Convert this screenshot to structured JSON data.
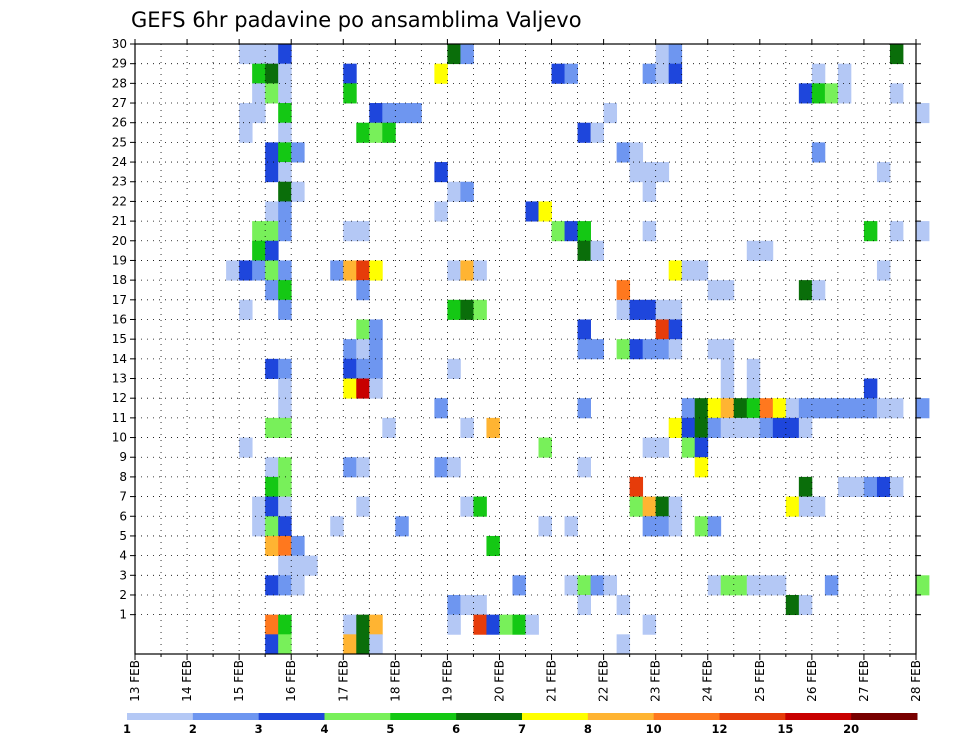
{
  "chart_data": {
    "type": "heatmap",
    "title": "GEFS 6hr padavine po ansamblima Valjevo",
    "xlabel": "",
    "ylabel": "",
    "x_ticks": [
      "13 FEB",
      "14 FEB",
      "15 FEB",
      "16 FEB",
      "17 FEB",
      "18 FEB",
      "19 FEB",
      "20 FEB",
      "21 FEB",
      "22 FEB",
      "23 FEB",
      "24 FEB",
      "25 FEB",
      "26 FEB",
      "27 FEB",
      "28 FEB"
    ],
    "y_ticks": [
      1,
      2,
      3,
      4,
      5,
      6,
      7,
      8,
      9,
      10,
      11,
      12,
      13,
      14,
      15,
      16,
      17,
      18,
      19,
      20,
      21,
      22,
      23,
      24,
      25,
      26,
      27,
      28,
      29,
      30
    ],
    "ylim": [
      0,
      30
    ],
    "time_step_hours": 6,
    "grid": true,
    "colorbar": {
      "placement": "bottom",
      "labels": [
        "1",
        "2",
        "3",
        "4",
        "5",
        "6",
        "7",
        "8",
        "10",
        "12",
        "15",
        "20"
      ],
      "colors": [
        "#b4c8f5",
        "#6e96f0",
        "#1e46dc",
        "#78f05a",
        "#14c814",
        "#0a6e0a",
        "#ffff00",
        "#ffb432",
        "#ff781e",
        "#e63c0a",
        "#c80000",
        "#780000"
      ]
    },
    "cells": [
      [
        30,
        "15 FEB 00Z",
        0
      ],
      [
        30,
        "15 FEB 06Z",
        0
      ],
      [
        30,
        "15 FEB 12Z",
        0
      ],
      [
        30,
        "15 FEB 18Z",
        2
      ],
      [
        30,
        "19 FEB 00Z",
        5
      ],
      [
        30,
        "19 FEB 06Z",
        1
      ],
      [
        30,
        "23 FEB 00Z",
        0
      ],
      [
        30,
        "23 FEB 06Z",
        1
      ],
      [
        30,
        "27 FEB 12Z",
        5
      ],
      [
        29,
        "15 FEB 06Z",
        4
      ],
      [
        29,
        "15 FEB 12Z",
        5
      ],
      [
        29,
        "15 FEB 18Z",
        0
      ],
      [
        29,
        "17 FEB 00Z",
        2
      ],
      [
        29,
        "18 FEB 18Z",
        6
      ],
      [
        29,
        "21 FEB 00Z",
        2
      ],
      [
        29,
        "21 FEB 06Z",
        1
      ],
      [
        29,
        "22 FEB 18Z",
        1
      ],
      [
        29,
        "23 FEB 00Z",
        0
      ],
      [
        29,
        "23 FEB 06Z",
        2
      ],
      [
        29,
        "26 FEB 00Z",
        0
      ],
      [
        29,
        "26 FEB 12Z",
        0
      ],
      [
        28,
        "15 FEB 06Z",
        0
      ],
      [
        28,
        "15 FEB 12Z",
        3
      ],
      [
        28,
        "15 FEB 18Z",
        0
      ],
      [
        28,
        "17 FEB 00Z",
        4
      ],
      [
        28,
        "25 FEB 18Z",
        2
      ],
      [
        28,
        "26 FEB 00Z",
        4
      ],
      [
        28,
        "26 FEB 06Z",
        3
      ],
      [
        28,
        "26 FEB 12Z",
        0
      ],
      [
        28,
        "27 FEB 12Z",
        0
      ],
      [
        27,
        "15 FEB 00Z",
        0
      ],
      [
        27,
        "15 FEB 06Z",
        0
      ],
      [
        27,
        "15 FEB 18Z",
        4
      ],
      [
        27,
        "17 FEB 12Z",
        2
      ],
      [
        27,
        "17 FEB 18Z",
        1
      ],
      [
        27,
        "18 FEB 00Z",
        1
      ],
      [
        27,
        "18 FEB 06Z",
        1
      ],
      [
        27,
        "22 FEB 00Z",
        0
      ],
      [
        27,
        "28 FEB 00Z",
        0
      ],
      [
        26,
        "15 FEB 00Z",
        0
      ],
      [
        26,
        "15 FEB 18Z",
        0
      ],
      [
        26,
        "17 FEB 06Z",
        4
      ],
      [
        26,
        "17 FEB 12Z",
        3
      ],
      [
        26,
        "17 FEB 18Z",
        4
      ],
      [
        26,
        "21 FEB 12Z",
        2
      ],
      [
        26,
        "21 FEB 18Z",
        0
      ],
      [
        25,
        "15 FEB 12Z",
        2
      ],
      [
        25,
        "15 FEB 18Z",
        4
      ],
      [
        25,
        "16 FEB 00Z",
        1
      ],
      [
        25,
        "22 FEB 06Z",
        1
      ],
      [
        25,
        "22 FEB 12Z",
        0
      ],
      [
        25,
        "26 FEB 00Z",
        1
      ],
      [
        24,
        "15 FEB 12Z",
        2
      ],
      [
        24,
        "15 FEB 18Z",
        0
      ],
      [
        24,
        "18 FEB 18Z",
        2
      ],
      [
        24,
        "22 FEB 12Z",
        0
      ],
      [
        24,
        "22 FEB 18Z",
        0
      ],
      [
        24,
        "23 FEB 00Z",
        0
      ],
      [
        24,
        "27 FEB 06Z",
        0
      ],
      [
        23,
        "15 FEB 18Z",
        5
      ],
      [
        23,
        "16 FEB 00Z",
        0
      ],
      [
        23,
        "19 FEB 00Z",
        0
      ],
      [
        23,
        "19 FEB 06Z",
        1
      ],
      [
        23,
        "22 FEB 18Z",
        0
      ],
      [
        22,
        "15 FEB 12Z",
        0
      ],
      [
        22,
        "15 FEB 18Z",
        1
      ],
      [
        22,
        "18 FEB 18Z",
        0
      ],
      [
        22,
        "20 FEB 12Z",
        2
      ],
      [
        22,
        "20 FEB 18Z",
        6
      ],
      [
        21,
        "15 FEB 06Z",
        3
      ],
      [
        21,
        "15 FEB 12Z",
        3
      ],
      [
        21,
        "15 FEB 18Z",
        1
      ],
      [
        21,
        "17 FEB 00Z",
        0
      ],
      [
        21,
        "17 FEB 06Z",
        0
      ],
      [
        21,
        "21 FEB 00Z",
        3
      ],
      [
        21,
        "21 FEB 06Z",
        2
      ],
      [
        21,
        "21 FEB 12Z",
        4
      ],
      [
        21,
        "22 FEB 18Z",
        0
      ],
      [
        21,
        "27 FEB 00Z",
        4
      ],
      [
        21,
        "27 FEB 12Z",
        0
      ],
      [
        21,
        "28 FEB 00Z",
        0
      ],
      [
        20,
        "15 FEB 06Z",
        4
      ],
      [
        20,
        "15 FEB 12Z",
        2
      ],
      [
        20,
        "21 FEB 12Z",
        5
      ],
      [
        20,
        "21 FEB 18Z",
        0
      ],
      [
        20,
        "24 FEB 18Z",
        0
      ],
      [
        20,
        "25 FEB 00Z",
        0
      ],
      [
        19,
        "14 FEB 18Z",
        0
      ],
      [
        19,
        "15 FEB 00Z",
        2
      ],
      [
        19,
        "15 FEB 06Z",
        1
      ],
      [
        19,
        "15 FEB 12Z",
        3
      ],
      [
        19,
        "15 FEB 18Z",
        1
      ],
      [
        19,
        "16 FEB 18Z",
        1
      ],
      [
        19,
        "17 FEB 00Z",
        7
      ],
      [
        19,
        "17 FEB 06Z",
        9
      ],
      [
        19,
        "17 FEB 12Z",
        6
      ],
      [
        19,
        "19 FEB 00Z",
        0
      ],
      [
        19,
        "19 FEB 06Z",
        7
      ],
      [
        19,
        "19 FEB 12Z",
        0
      ],
      [
        19,
        "23 FEB 06Z",
        6
      ],
      [
        19,
        "23 FEB 12Z",
        0
      ],
      [
        19,
        "23 FEB 18Z",
        0
      ],
      [
        19,
        "27 FEB 06Z",
        0
      ],
      [
        18,
        "15 FEB 12Z",
        1
      ],
      [
        18,
        "15 FEB 18Z",
        4
      ],
      [
        18,
        "17 FEB 06Z",
        1
      ],
      [
        18,
        "22 FEB 06Z",
        8
      ],
      [
        18,
        "24 FEB 00Z",
        0
      ],
      [
        18,
        "24 FEB 06Z",
        0
      ],
      [
        18,
        "25 FEB 18Z",
        5
      ],
      [
        18,
        "26 FEB 00Z",
        0
      ],
      [
        17,
        "15 FEB 00Z",
        0
      ],
      [
        17,
        "15 FEB 18Z",
        1
      ],
      [
        17,
        "19 FEB 00Z",
        4
      ],
      [
        17,
        "19 FEB 06Z",
        5
      ],
      [
        17,
        "19 FEB 12Z",
        3
      ],
      [
        17,
        "22 FEB 06Z",
        0
      ],
      [
        17,
        "22 FEB 12Z",
        2
      ],
      [
        17,
        "22 FEB 18Z",
        2
      ],
      [
        17,
        "23 FEB 00Z",
        0
      ],
      [
        17,
        "23 FEB 06Z",
        0
      ],
      [
        16,
        "17 FEB 06Z",
        3
      ],
      [
        16,
        "17 FEB 12Z",
        1
      ],
      [
        16,
        "21 FEB 12Z",
        2
      ],
      [
        16,
        "23 FEB 00Z",
        9
      ],
      [
        16,
        "23 FEB 06Z",
        2
      ],
      [
        15,
        "17 FEB 00Z",
        1
      ],
      [
        15,
        "17 FEB 06Z",
        0
      ],
      [
        15,
        "17 FEB 12Z",
        1
      ],
      [
        15,
        "21 FEB 12Z",
        1
      ],
      [
        15,
        "21 FEB 18Z",
        1
      ],
      [
        15,
        "22 FEB 06Z",
        3
      ],
      [
        15,
        "22 FEB 12Z",
        2
      ],
      [
        15,
        "22 FEB 18Z",
        1
      ],
      [
        15,
        "23 FEB 00Z",
        1
      ],
      [
        15,
        "23 FEB 06Z",
        0
      ],
      [
        15,
        "24 FEB 00Z",
        0
      ],
      [
        15,
        "24 FEB 06Z",
        0
      ],
      [
        14,
        "15 FEB 12Z",
        2
      ],
      [
        14,
        "15 FEB 18Z",
        1
      ],
      [
        14,
        "17 FEB 00Z",
        2
      ],
      [
        14,
        "17 FEB 06Z",
        1
      ],
      [
        14,
        "17 FEB 12Z",
        1
      ],
      [
        14,
        "19 FEB 00Z",
        0
      ],
      [
        14,
        "24 FEB 06Z",
        0
      ],
      [
        14,
        "24 FEB 18Z",
        0
      ],
      [
        13,
        "15 FEB 18Z",
        0
      ],
      [
        13,
        "17 FEB 00Z",
        6
      ],
      [
        13,
        "17 FEB 06Z",
        10
      ],
      [
        13,
        "17 FEB 12Z",
        0
      ],
      [
        13,
        "24 FEB 06Z",
        0
      ],
      [
        13,
        "24 FEB 18Z",
        0
      ],
      [
        13,
        "27 FEB 00Z",
        2
      ],
      [
        12,
        "15 FEB 18Z",
        0
      ],
      [
        12,
        "18 FEB 18Z",
        1
      ],
      [
        12,
        "21 FEB 12Z",
        1
      ],
      [
        12,
        "23 FEB 12Z",
        1
      ],
      [
        12,
        "23 FEB 18Z",
        5
      ],
      [
        12,
        "24 FEB 00Z",
        6
      ],
      [
        12,
        "24 FEB 06Z",
        7
      ],
      [
        12,
        "24 FEB 12Z",
        5
      ],
      [
        12,
        "24 FEB 18Z",
        4
      ],
      [
        12,
        "25 FEB 00Z",
        8
      ],
      [
        12,
        "25 FEB 06Z",
        6
      ],
      [
        12,
        "25 FEB 12Z",
        0
      ],
      [
        12,
        "25 FEB 18Z",
        1
      ],
      [
        12,
        "26 FEB 00Z",
        1
      ],
      [
        12,
        "26 FEB 06Z",
        1
      ],
      [
        12,
        "26 FEB 12Z",
        1
      ],
      [
        12,
        "26 FEB 18Z",
        1
      ],
      [
        12,
        "27 FEB 00Z",
        1
      ],
      [
        12,
        "27 FEB 06Z",
        0
      ],
      [
        12,
        "27 FEB 12Z",
        0
      ],
      [
        12,
        "28 FEB 00Z",
        1
      ],
      [
        11,
        "15 FEB 12Z",
        3
      ],
      [
        11,
        "15 FEB 18Z",
        3
      ],
      [
        11,
        "17 FEB 18Z",
        0
      ],
      [
        11,
        "19 FEB 06Z",
        0
      ],
      [
        11,
        "19 FEB 18Z",
        7
      ],
      [
        11,
        "23 FEB 06Z",
        6
      ],
      [
        11,
        "23 FEB 12Z",
        2
      ],
      [
        11,
        "23 FEB 18Z",
        5
      ],
      [
        11,
        "24 FEB 00Z",
        1
      ],
      [
        11,
        "24 FEB 06Z",
        0
      ],
      [
        11,
        "24 FEB 12Z",
        0
      ],
      [
        11,
        "24 FEB 18Z",
        0
      ],
      [
        11,
        "25 FEB 00Z",
        1
      ],
      [
        11,
        "25 FEB 06Z",
        2
      ],
      [
        11,
        "25 FEB 12Z",
        2
      ],
      [
        11,
        "25 FEB 18Z",
        0
      ],
      [
        10,
        "15 FEB 00Z",
        0
      ],
      [
        10,
        "20 FEB 18Z",
        3
      ],
      [
        10,
        "22 FEB 18Z",
        0
      ],
      [
        10,
        "23 FEB 00Z",
        0
      ],
      [
        10,
        "23 FEB 12Z",
        3
      ],
      [
        10,
        "23 FEB 18Z",
        2
      ],
      [
        9,
        "15 FEB 12Z",
        0
      ],
      [
        9,
        "15 FEB 18Z",
        3
      ],
      [
        9,
        "17 FEB 00Z",
        1
      ],
      [
        9,
        "17 FEB 06Z",
        0
      ],
      [
        9,
        "18 FEB 18Z",
        1
      ],
      [
        9,
        "19 FEB 00Z",
        0
      ],
      [
        9,
        "21 FEB 12Z",
        0
      ],
      [
        9,
        "23 FEB 18Z",
        6
      ],
      [
        8,
        "15 FEB 12Z",
        4
      ],
      [
        8,
        "15 FEB 18Z",
        3
      ],
      [
        8,
        "22 FEB 12Z",
        9
      ],
      [
        8,
        "25 FEB 18Z",
        5
      ],
      [
        8,
        "26 FEB 12Z",
        0
      ],
      [
        8,
        "26 FEB 18Z",
        0
      ],
      [
        8,
        "27 FEB 00Z",
        1
      ],
      [
        8,
        "27 FEB 06Z",
        2
      ],
      [
        8,
        "27 FEB 12Z",
        0
      ],
      [
        7,
        "15 FEB 06Z",
        0
      ],
      [
        7,
        "15 FEB 12Z",
        2
      ],
      [
        7,
        "15 FEB 18Z",
        0
      ],
      [
        7,
        "17 FEB 06Z",
        0
      ],
      [
        7,
        "19 FEB 06Z",
        0
      ],
      [
        7,
        "19 FEB 12Z",
        4
      ],
      [
        7,
        "22 FEB 12Z",
        3
      ],
      [
        7,
        "22 FEB 18Z",
        7
      ],
      [
        7,
        "23 FEB 00Z",
        5
      ],
      [
        7,
        "23 FEB 06Z",
        0
      ],
      [
        7,
        "25 FEB 12Z",
        6
      ],
      [
        7,
        "25 FEB 18Z",
        0
      ],
      [
        7,
        "26 FEB 00Z",
        0
      ],
      [
        6,
        "15 FEB 06Z",
        0
      ],
      [
        6,
        "15 FEB 12Z",
        3
      ],
      [
        6,
        "15 FEB 18Z",
        2
      ],
      [
        6,
        "16 FEB 18Z",
        0
      ],
      [
        6,
        "18 FEB 00Z",
        1
      ],
      [
        6,
        "20 FEB 18Z",
        0
      ],
      [
        6,
        "21 FEB 06Z",
        0
      ],
      [
        6,
        "22 FEB 18Z",
        1
      ],
      [
        6,
        "23 FEB 00Z",
        1
      ],
      [
        6,
        "23 FEB 06Z",
        0
      ],
      [
        6,
        "23 FEB 18Z",
        3
      ],
      [
        6,
        "24 FEB 00Z",
        1
      ],
      [
        5,
        "15 FEB 12Z",
        7
      ],
      [
        5,
        "15 FEB 18Z",
        8
      ],
      [
        5,
        "16 FEB 00Z",
        1
      ],
      [
        5,
        "19 FEB 18Z",
        4
      ],
      [
        4,
        "15 FEB 18Z",
        0
      ],
      [
        4,
        "16 FEB 00Z",
        0
      ],
      [
        4,
        "16 FEB 06Z",
        0
      ],
      [
        3,
        "15 FEB 12Z",
        2
      ],
      [
        3,
        "15 FEB 18Z",
        1
      ],
      [
        3,
        "16 FEB 00Z",
        0
      ],
      [
        3,
        "20 FEB 06Z",
        1
      ],
      [
        3,
        "21 FEB 06Z",
        0
      ],
      [
        3,
        "21 FEB 12Z",
        3
      ],
      [
        3,
        "21 FEB 18Z",
        1
      ],
      [
        3,
        "22 FEB 00Z",
        0
      ],
      [
        3,
        "24 FEB 00Z",
        0
      ],
      [
        3,
        "24 FEB 06Z",
        3
      ],
      [
        3,
        "24 FEB 12Z",
        3
      ],
      [
        3,
        "24 FEB 18Z",
        0
      ],
      [
        3,
        "25 FEB 00Z",
        0
      ],
      [
        3,
        "25 FEB 06Z",
        0
      ],
      [
        3,
        "26 FEB 06Z",
        1
      ],
      [
        3,
        "28 FEB 00Z",
        3
      ],
      [
        2,
        "19 FEB 00Z",
        1
      ],
      [
        2,
        "19 FEB 06Z",
        0
      ],
      [
        2,
        "19 FEB 12Z",
        0
      ],
      [
        2,
        "21 FEB 12Z",
        0
      ],
      [
        2,
        "22 FEB 06Z",
        0
      ],
      [
        2,
        "25 FEB 12Z",
        5
      ],
      [
        2,
        "25 FEB 18Z",
        0
      ],
      [
        1,
        "15 FEB 12Z",
        8
      ],
      [
        1,
        "15 FEB 18Z",
        4
      ],
      [
        1,
        "17 FEB 00Z",
        0
      ],
      [
        1,
        "17 FEB 06Z",
        5
      ],
      [
        1,
        "17 FEB 12Z",
        7
      ],
      [
        1,
        "19 FEB 00Z",
        0
      ],
      [
        1,
        "19 FEB 12Z",
        9
      ],
      [
        1,
        "19 FEB 18Z",
        2
      ],
      [
        1,
        "20 FEB 00Z",
        3
      ],
      [
        1,
        "20 FEB 06Z",
        4
      ],
      [
        1,
        "20 FEB 12Z",
        0
      ],
      [
        1,
        "22 FEB 18Z",
        0
      ],
      [
        0,
        "15 FEB 12Z",
        2
      ],
      [
        0,
        "15 FEB 18Z",
        3
      ],
      [
        0,
        "17 FEB 00Z",
        7
      ],
      [
        0,
        "17 FEB 06Z",
        5
      ],
      [
        0,
        "17 FEB 12Z",
        0
      ],
      [
        0,
        "22 FEB 06Z",
        0
      ]
    ]
  }
}
